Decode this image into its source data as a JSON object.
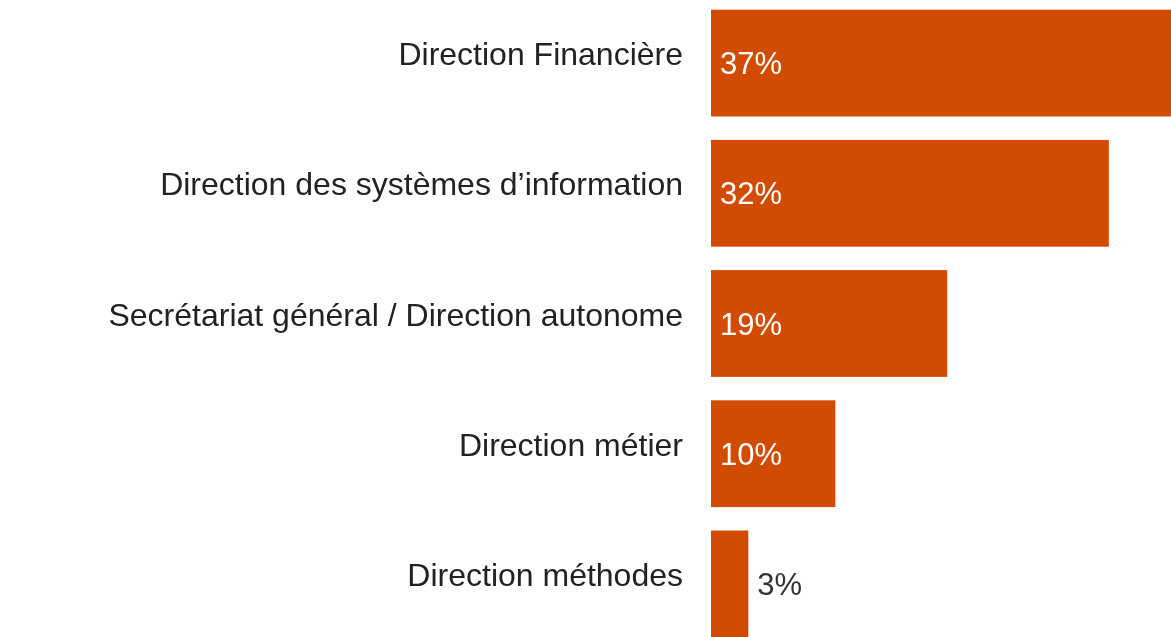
{
  "chart_data": {
    "type": "bar",
    "orientation": "horizontal",
    "categories": [
      "Direction Financière",
      "Direction des systèmes d’information",
      "Secrétariat général / Direction autonome",
      "Direction métier",
      "Direction méthodes"
    ],
    "values": [
      37,
      32,
      19,
      10,
      3
    ],
    "color": "#d14b00",
    "xlim": [
      0,
      37
    ],
    "data_labels": true,
    "value_labels": [
      "37%",
      "32%",
      "19%",
      "10%",
      "3%"
    ],
    "tick_labels": "y"
  }
}
